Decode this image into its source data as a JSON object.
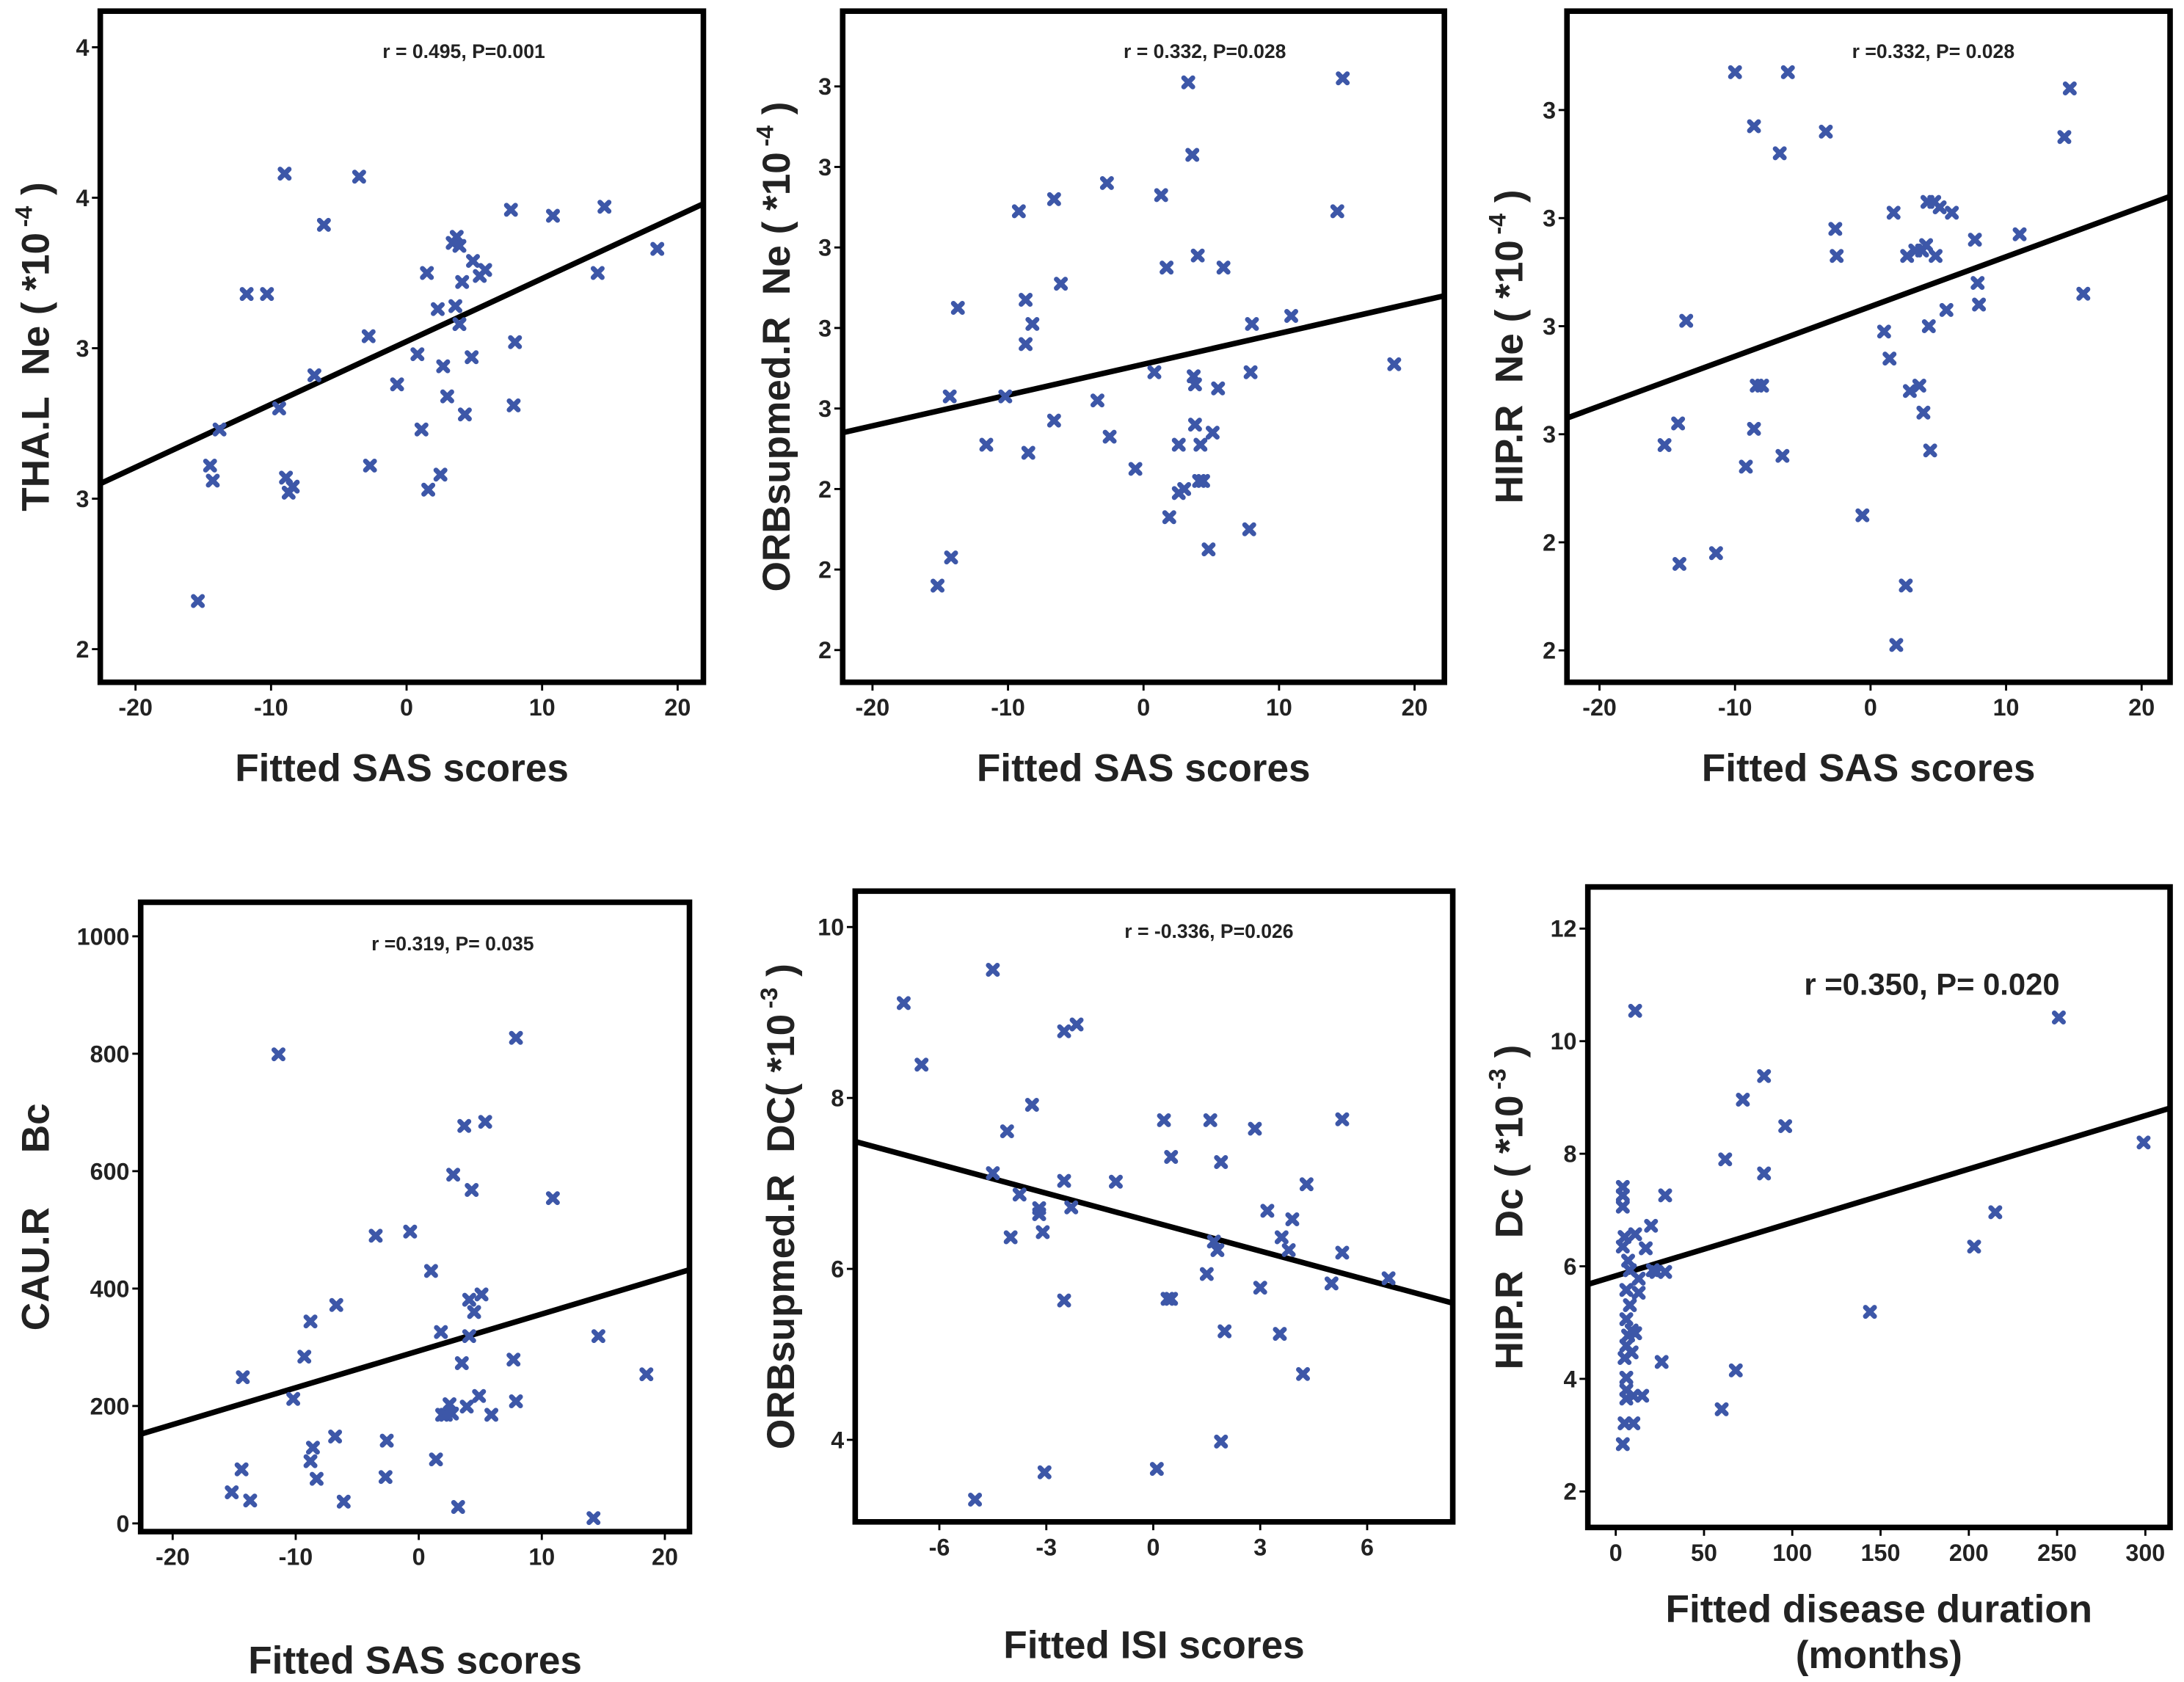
{
  "chart_data": [
    {
      "type": "scatter",
      "annotation": "r = 0.495, P=0.001",
      "xlabel": "Fitted  SAS  scores",
      "ylabel": "THA.L  Ne ( *10",
      "ylabel_sup": "-4",
      "ylabel_end": " )",
      "color": "#3d57a8",
      "xlim": [
        -22.6,
        21.9
      ],
      "ylim": [
        1.89,
        4.12
      ],
      "xticks": [
        -20,
        -10,
        0,
        10,
        20
      ],
      "yticks": [
        {
          "value": 2.0,
          "label": "2"
        },
        {
          "value": 2.5,
          "label": "3"
        },
        {
          "value": 3.0,
          "label": "3"
        },
        {
          "value": 3.5,
          "label": "4"
        },
        {
          "value": 4.0,
          "label": "4"
        }
      ],
      "x": [
        -15.4,
        -14.5,
        -14.3,
        -13.8,
        -11.8,
        -10.3,
        -9.4,
        -9.0,
        -8.9,
        -8.7,
        -8.4,
        -6.8,
        -6.1,
        -3.5,
        -2.8,
        -2.7,
        -0.7,
        0.8,
        1.1,
        1.5,
        1.6,
        2.3,
        2.5,
        2.7,
        3.0,
        3.4,
        3.6,
        3.7,
        3.9,
        3.9,
        4.1,
        4.3,
        4.8,
        4.9,
        5.4,
        5.8,
        7.7,
        7.9,
        8.0,
        10.8,
        14.1,
        14.6,
        18.5
      ],
      "values": [
        2.16,
        2.61,
        2.56,
        2.73,
        3.18,
        3.18,
        2.8,
        3.58,
        2.57,
        2.52,
        2.54,
        2.91,
        3.41,
        3.57,
        3.04,
        2.61,
        2.88,
        2.98,
        2.73,
        3.25,
        2.53,
        3.13,
        2.58,
        2.94,
        2.84,
        3.35,
        3.14,
        3.37,
        3.34,
        3.08,
        3.22,
        2.78,
        2.97,
        3.29,
        3.24,
        3.26,
        3.46,
        2.81,
        3.02,
        3.44,
        3.25,
        3.47,
        3.33
      ],
      "fit_line": {
        "x": [
          -22.6,
          21.9
        ],
        "y": [
          2.55,
          3.48
        ]
      }
    },
    {
      "type": "scatter",
      "annotation": "r = 0.332, P=0.028",
      "xlabel": "Fitted  SAS  scores",
      "ylabel": "ORBsupmed.R  Ne ( *10",
      "ylabel_sup": "-4",
      "ylabel_end": " )",
      "color": "#3d57a8",
      "xlim": [
        -22.2,
        22.2
      ],
      "ylim": [
        1.92,
        3.587
      ],
      "xticks": [
        -20,
        -10,
        0,
        10,
        20
      ],
      "yticks": [
        {
          "value": 2.0,
          "label": "2"
        },
        {
          "value": 2.2,
          "label": "2"
        },
        {
          "value": 2.4,
          "label": "2"
        },
        {
          "value": 2.6,
          "label": "3"
        },
        {
          "value": 2.8,
          "label": "3"
        },
        {
          "value": 3.0,
          "label": "3"
        },
        {
          "value": 3.2,
          "label": "3"
        },
        {
          "value": 3.4,
          "label": "3"
        }
      ],
      "x": [
        -15.2,
        -14.2,
        -14.3,
        -13.7,
        -11.6,
        -10.2,
        -9.2,
        -8.7,
        -8.7,
        -8.2,
        -8.5,
        -6.6,
        -6.6,
        -6.1,
        -3.4,
        -2.7,
        -2.5,
        -0.6,
        0.8,
        1.3,
        1.7,
        1.9,
        2.6,
        2.6,
        3.0,
        3.3,
        3.6,
        3.7,
        3.8,
        3.8,
        4.0,
        4.2,
        4.4,
        4.1,
        4.8,
        5.1,
        5.5,
        5.9,
        7.8,
        7.9,
        8.0,
        10.9,
        14.3,
        14.7,
        18.5
      ],
      "values": [
        2.16,
        2.23,
        2.63,
        2.85,
        2.51,
        2.63,
        3.09,
        2.87,
        2.76,
        2.81,
        2.49,
        3.12,
        2.57,
        2.91,
        2.62,
        3.16,
        2.53,
        2.45,
        2.69,
        3.13,
        2.95,
        2.33,
        2.51,
        2.39,
        2.4,
        3.41,
        3.23,
        2.68,
        2.66,
        2.56,
        2.98,
        2.51,
        2.42,
        2.42,
        2.25,
        2.54,
        2.65,
        2.95,
        2.3,
        2.69,
        2.81,
        2.83,
        3.09,
        3.42,
        2.71
      ],
      "fit_line": {
        "x": [
          -22.2,
          22.2
        ],
        "y": [
          2.54,
          2.88
        ]
      }
    },
    {
      "type": "scatter",
      "annotation": "r =0.332, P= 0.028",
      "xlabel": "Fitted  SAS  scores",
      "ylabel": "HIP.R  Ne ( *10",
      "ylabel_sup": "-4",
      "ylabel_end": " )",
      "color": "#3d57a8",
      "xlim": [
        -22.4,
        22.1
      ],
      "ylim": [
        2.141,
        3.383
      ],
      "xticks": [
        -20,
        -10,
        0,
        10,
        20
      ],
      "yticks": [
        {
          "value": 2.2,
          "label": "2"
        },
        {
          "value": 2.4,
          "label": "2"
        },
        {
          "value": 2.6,
          "label": "3"
        },
        {
          "value": 2.8,
          "label": "3"
        },
        {
          "value": 3.0,
          "label": "3"
        },
        {
          "value": 3.2,
          "label": "3"
        }
      ],
      "x": [
        -15.2,
        -14.2,
        -14.1,
        -13.6,
        -11.4,
        -10.0,
        -9.2,
        -8.6,
        -8.6,
        -8.4,
        -8.0,
        -6.7,
        -6.5,
        -6.1,
        -3.3,
        -2.6,
        -2.5,
        -0.6,
        1.0,
        1.4,
        1.7,
        1.9,
        2.6,
        2.7,
        2.9,
        3.3,
        3.6,
        3.8,
        3.9,
        4.1,
        4.2,
        4.3,
        4.4,
        4.7,
        4.8,
        5.1,
        5.6,
        6.0,
        7.7,
        7.9,
        8.0,
        11.0,
        14.3,
        14.7,
        15.7
      ],
      "values": [
        2.58,
        2.62,
        2.36,
        2.81,
        2.38,
        3.27,
        2.54,
        3.17,
        2.61,
        2.69,
        2.69,
        3.12,
        2.56,
        3.27,
        3.16,
        2.98,
        2.93,
        2.45,
        2.79,
        2.74,
        3.01,
        2.21,
        2.32,
        2.93,
        2.68,
        2.94,
        2.69,
        2.94,
        2.64,
        2.95,
        3.03,
        2.8,
        2.57,
        3.03,
        2.93,
        3.02,
        2.83,
        3.01,
        2.96,
        2.88,
        2.84,
        2.97,
        3.15,
        3.24,
        2.86
      ],
      "fit_line": {
        "x": [
          -22.4,
          22.1
        ],
        "y": [
          2.63,
          3.04
        ]
      }
    },
    {
      "type": "scatter",
      "annotation": "r =0.319, P= 0.035",
      "xlabel": "Fitted  SAS scores",
      "ylabel": "CAU.R     Bc",
      "color": "#3d57a8",
      "xlim": [
        -22.6,
        22.0
      ],
      "ylim": [
        -14,
        1058
      ],
      "xticks": [
        -20,
        -10,
        0,
        10,
        20
      ],
      "yticks": [
        0,
        200,
        400,
        600,
        800,
        1000
      ],
      "x": [
        -15.2,
        -14.4,
        -13.7,
        -14.3,
        -11.4,
        -10.2,
        -9.3,
        -8.8,
        -8.6,
        -8.8,
        -8.3,
        -6.8,
        -6.7,
        -6.1,
        -3.5,
        -2.7,
        -2.6,
        -0.7,
        1.0,
        1.4,
        1.8,
        1.9,
        2.2,
        2.5,
        2.7,
        2.8,
        3.2,
        3.5,
        3.7,
        3.9,
        4.1,
        4.1,
        4.3,
        4.5,
        4.9,
        5.1,
        5.4,
        5.9,
        7.7,
        7.9,
        7.9,
        10.9,
        14.2,
        14.6,
        18.5
      ],
      "values": [
        53,
        92,
        39,
        249,
        799,
        212,
        284,
        106,
        129,
        344,
        76,
        148,
        372,
        37,
        490,
        79,
        141,
        497,
        430,
        109,
        326,
        185,
        185,
        203,
        187,
        594,
        28,
        273,
        677,
        199,
        381,
        319,
        568,
        360,
        217,
        390,
        684,
        185,
        279,
        208,
        827,
        554,
        9,
        319,
        254
      ],
      "fit_line": {
        "x": [
          -22.6,
          22.0
        ],
        "y": [
          152,
          432
        ]
      }
    },
    {
      "type": "scatter",
      "annotation": "r = -0.336, P=0.026",
      "xlabel": "Fitted  ISI  scores",
      "ylabel": "ORBsupmed.R  DC( *10",
      "ylabel_sup": "-3",
      "ylabel_end": " )",
      "color": "#3d57a8",
      "xlim": [
        -8.36,
        8.4
      ],
      "ylim": [
        3.04,
        10.42
      ],
      "xticks": [
        -6,
        -3,
        0,
        3,
        6
      ],
      "yticks": [
        4,
        6,
        8,
        10
      ],
      "x": [
        -7.0,
        -6.5,
        -5.0,
        -4.5,
        -4.5,
        -4.1,
        -4.0,
        -3.75,
        -3.4,
        -3.2,
        -3.2,
        -3.1,
        -3.05,
        -2.5,
        -2.5,
        -2.5,
        -2.3,
        -2.15,
        -1.05,
        0.1,
        0.3,
        0.4,
        0.5,
        0.5,
        1.5,
        1.6,
        1.7,
        1.8,
        1.9,
        1.9,
        2.0,
        2.85,
        3.0,
        3.2,
        3.55,
        3.6,
        3.8,
        3.9,
        4.2,
        4.3,
        5.0,
        5.3,
        5.3,
        6.6
      ],
      "values": [
        9.11,
        8.39,
        3.3,
        7.12,
        9.5,
        7.61,
        6.37,
        6.87,
        7.92,
        6.71,
        6.64,
        6.43,
        3.62,
        5.63,
        7.03,
        8.78,
        6.72,
        8.86,
        7.02,
        3.66,
        7.74,
        5.65,
        5.65,
        7.31,
        5.94,
        7.74,
        6.32,
        6.22,
        7.25,
        3.98,
        5.27,
        7.64,
        5.78,
        6.68,
        5.24,
        6.37,
        6.22,
        6.58,
        4.77,
        6.99,
        5.83,
        7.75,
        6.19,
        5.89
      ],
      "fit_line": {
        "x": [
          -8.36,
          8.4
        ],
        "y": [
          7.49,
          5.6
        ]
      }
    },
    {
      "type": "scatter",
      "annotation": "r =0.350, P= 0.020",
      "xlabel": [
        "Fitted  disease duration",
        "(months)"
      ],
      "ylabel": "HIP.R   Dc ( *10",
      "ylabel_sup": "-3",
      "ylabel_end": " )",
      "color": "#3d57a8",
      "xlim": [
        -15.8,
        314
      ],
      "ylim": [
        1.36,
        12.74
      ],
      "xticks": [
        0,
        50,
        100,
        150,
        200,
        250,
        300
      ],
      "yticks": [
        2,
        4,
        6,
        8,
        10,
        12
      ],
      "x": [
        4,
        5,
        6,
        6,
        6,
        5,
        6,
        7,
        6,
        6,
        4,
        5,
        4,
        4,
        4,
        7,
        8,
        8,
        9,
        9,
        10,
        10,
        11,
        11,
        11,
        13,
        13,
        15,
        17,
        20,
        21,
        23,
        26,
        28,
        28,
        60,
        62,
        68,
        72,
        84,
        84,
        96,
        144,
        203,
        215,
        251,
        299
      ],
      "values": [
        2.84,
        3.21,
        3.65,
        3.8,
        4.02,
        4.37,
        4.59,
        4.77,
        5.06,
        5.58,
        6.35,
        6.52,
        7.06,
        7.26,
        7.41,
        6.1,
        5.93,
        5.31,
        4.86,
        4.47,
        3.21,
        3.7,
        6.57,
        10.54,
        4.81,
        5.78,
        5.53,
        3.7,
        6.32,
        6.72,
        5.93,
        5.9,
        4.3,
        5.9,
        7.26,
        3.46,
        7.9,
        4.15,
        8.96,
        7.65,
        9.38,
        8.49,
        5.19,
        6.35,
        6.96,
        10.42,
        8.2
      ],
      "fit_line": {
        "x": [
          -15.8,
          314
        ],
        "y": [
          5.68,
          8.81
        ]
      }
    }
  ]
}
